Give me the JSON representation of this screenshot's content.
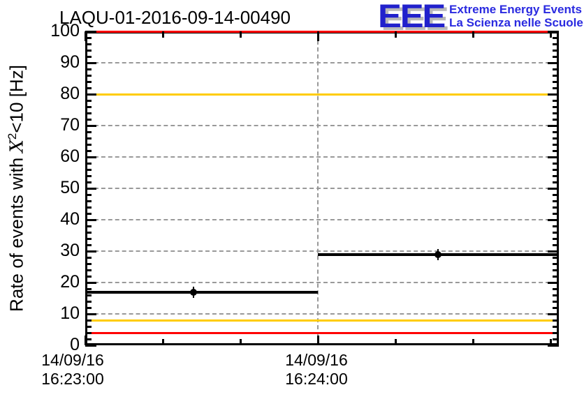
{
  "header": {
    "title": "LAQU-01-2016-09-14-00490"
  },
  "logo": {
    "acronym": "EEE",
    "line1": "Extreme Energy Events",
    "line2": "La Scienza nelle Scuole",
    "acronym_color": "#2121cc",
    "text_color": "#2a2ae0",
    "shadow_color": "#b9b9b9"
  },
  "y_axis": {
    "label_prefix": "Rate of events with ",
    "label_var": "X",
    "label_sup": "2",
    "label_suffix": "<10 [Hz]"
  },
  "chart_data": {
    "type": "line",
    "title": "LAQU-01-2016-09-14-00490",
    "ylabel": "Rate of events with X^2<10 [Hz]",
    "xlabel": "",
    "ylim": [
      0,
      100
    ],
    "x_seconds_range": [
      0,
      122
    ],
    "grid": true,
    "grid_color": "#999999",
    "y_major_tick_step": 10,
    "y_minor_tick_step": 2,
    "x_minor_tick_step_s": 20,
    "y_tick_labels": [
      "0",
      "10",
      "20",
      "30",
      "40",
      "50",
      "60",
      "70",
      "80",
      "90",
      "100"
    ],
    "x_major_ticks": [
      {
        "t_s": 0,
        "label_date": "14/09/16",
        "label_time": "16:23:00"
      },
      {
        "t_s": 60,
        "label_date": "14/09/16",
        "label_time": "16:24:00"
      }
    ],
    "series": [
      {
        "name": "event-rate",
        "color": "#000000",
        "marker": "filled-circle",
        "points": [
          {
            "bin_start_s": 0,
            "bin_end_s": 60,
            "marker_s": 28,
            "rate_hz": 16.8
          },
          {
            "bin_start_s": 60,
            "bin_end_s": 122,
            "marker_s": 91,
            "rate_hz": 28.9
          }
        ]
      }
    ],
    "threshold_lines": [
      {
        "value_hz": 100,
        "color": "#ff0000"
      },
      {
        "value_hz": 80,
        "color": "#ffcc00"
      },
      {
        "value_hz": 8,
        "color": "#ffcc00"
      },
      {
        "value_hz": 4,
        "color": "#ff0000"
      }
    ]
  }
}
